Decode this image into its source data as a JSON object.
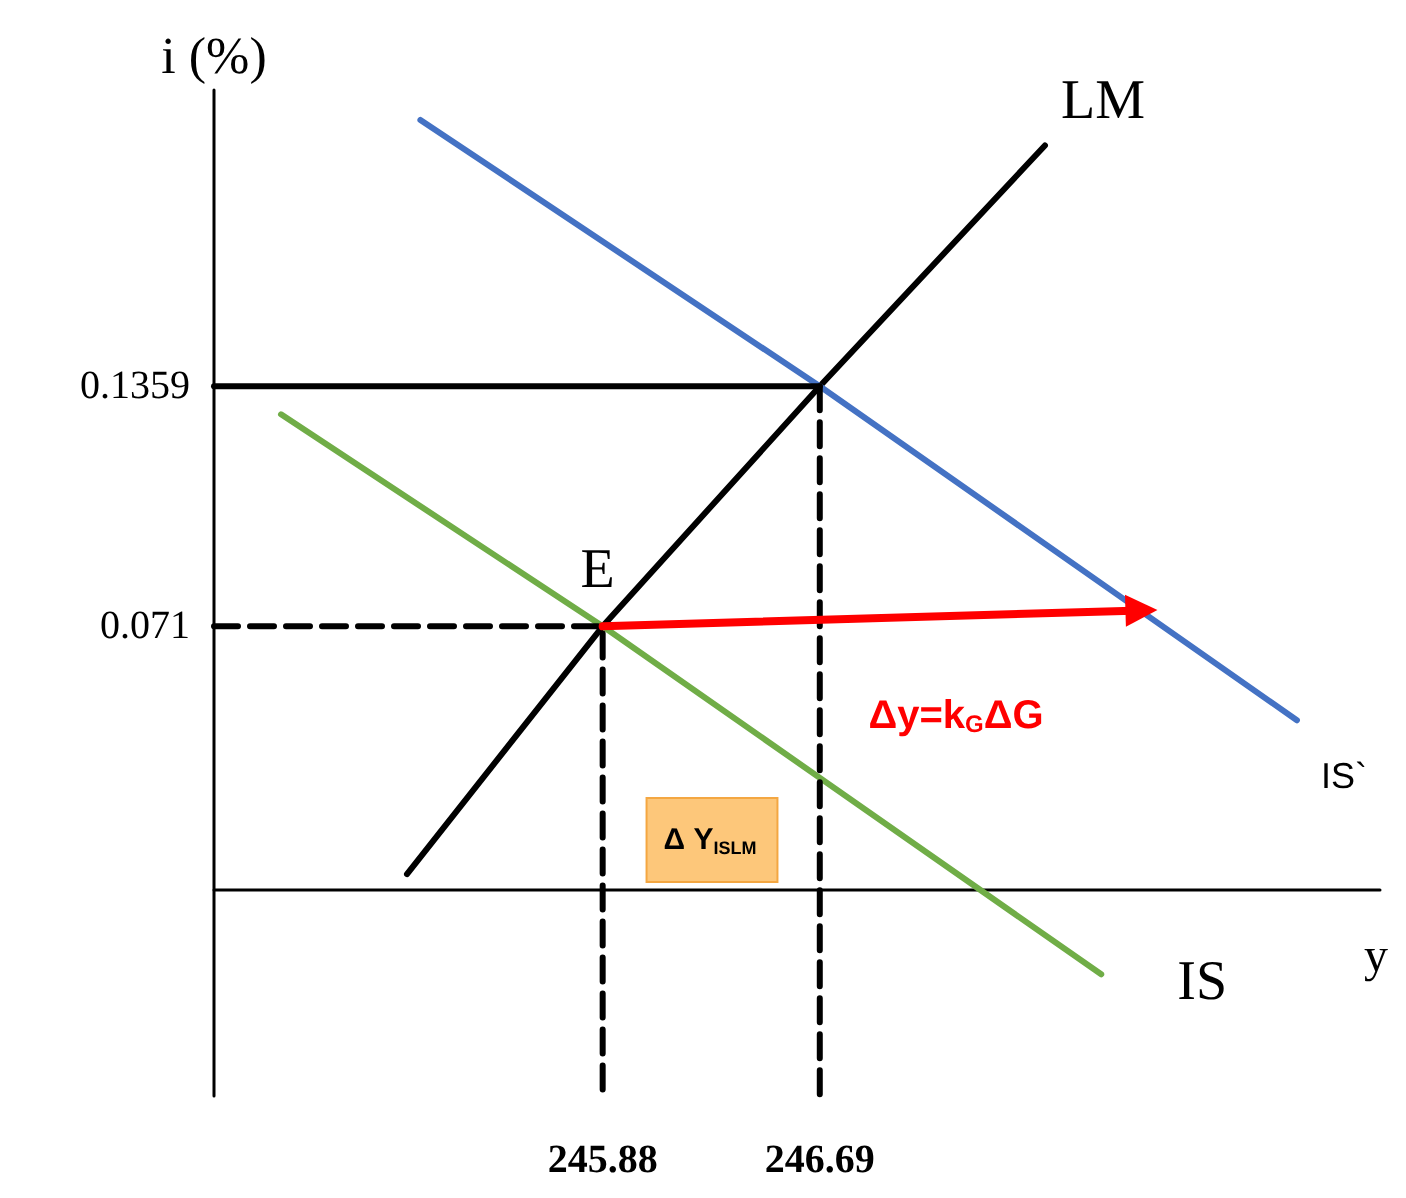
{
  "chart_data": {
    "type": "line",
    "xlabel": "y",
    "ylabel": "i (%)",
    "xlim": [
      244.43,
      248.78
    ],
    "ylim": [
      -0.056,
      0.216
    ],
    "xticks": [
      245.88,
      246.69
    ],
    "yticks": [
      0.071,
      0.1359
    ],
    "marker": "none",
    "series": [
      {
        "name": "LM",
        "color": "#000000",
        "x": [
          245.15,
          245.88,
          246.69,
          247.53
        ],
        "values": [
          0.004,
          0.071,
          0.1359,
          0.201
        ]
      },
      {
        "name": "IS`",
        "color": "#4472c4",
        "x": [
          245.2,
          246.69,
          248.47
        ],
        "values": [
          0.2079,
          0.1359,
          0.0456
        ]
      },
      {
        "name": "IS",
        "color": "#70ad47",
        "x": [
          244.68,
          245.88,
          247.74
        ],
        "values": [
          0.1283,
          0.071,
          -0.0231
        ]
      },
      {
        "color": "#000000",
        "x": [
          244.43,
          245.88,
          245.88
        ],
        "values": [
          0.071,
          0.071,
          -0.056
        ],
        "line_style": "dashed"
      },
      {
        "color": "#000000",
        "x": [
          244.43,
          246.69
        ],
        "values": [
          0.1359,
          0.1359
        ],
        "line_style": "solid"
      },
      {
        "color": "#000000",
        "x": [
          246.69,
          246.69
        ],
        "values": [
          0.1359,
          -0.056
        ],
        "line_style": "dashed"
      },
      {
        "color": "#ff0000",
        "x": [
          245.88,
          247.89
        ],
        "values": [
          0.071,
          0.0753
        ],
        "marker": "triangle"
      }
    ],
    "annotations": [
      {
        "text": "E",
        "x": 245.88,
        "y": 0.071
      },
      "Δ Y$_{ISLM}$",
      "Δy=k$_{G}$ΔG"
    ]
  }
}
